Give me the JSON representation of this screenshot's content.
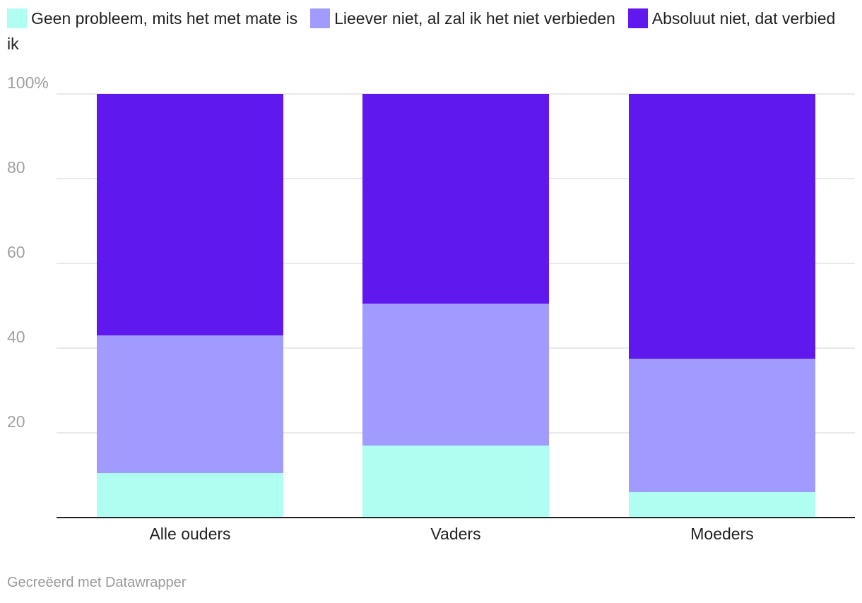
{
  "chart_data": {
    "type": "bar",
    "stacked": true,
    "categories": [
      "Alle ouders",
      "Vaders",
      "Moeders"
    ],
    "series": [
      {
        "name": "Geen probleem, mits het met mate is",
        "values": [
          10.5,
          17,
          6
        ],
        "color": "#b0fdf1"
      },
      {
        "name": "Lieever niet, al zal ik het niet verbieden",
        "values": [
          32.5,
          33.5,
          31.5
        ],
        "color": "#a19aff"
      },
      {
        "name": "Absoluut niet, dat verbied ik",
        "values": [
          57,
          49.5,
          62.5
        ],
        "color": "#5f19ee"
      }
    ],
    "yticks": [
      {
        "value": 20,
        "label": "20"
      },
      {
        "value": 40,
        "label": "40"
      },
      {
        "value": 60,
        "label": "60"
      },
      {
        "value": 80,
        "label": "80"
      },
      {
        "value": 100,
        "label": "100%"
      }
    ],
    "ylim": [
      0,
      100
    ],
    "grid": true,
    "legend": "top-left"
  },
  "footer": {
    "credit": "Gecreëerd met Datawrapper"
  }
}
